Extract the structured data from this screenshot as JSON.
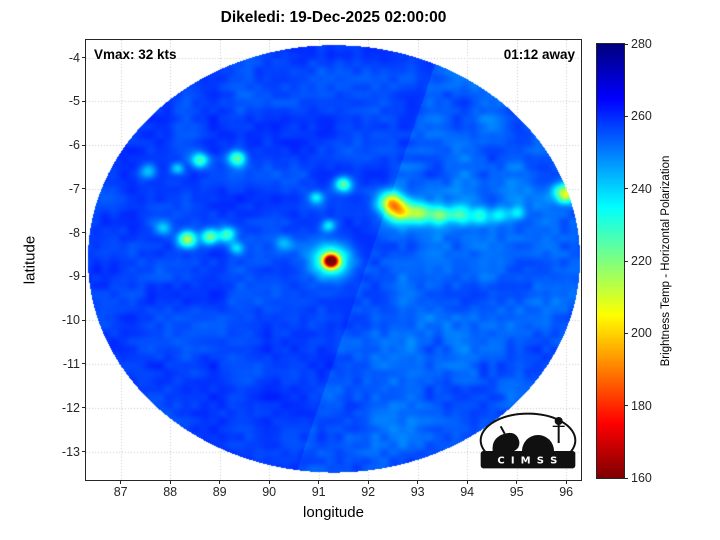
{
  "title": "Dikeledi: 19-Dec-2025 02:00:00",
  "overlay": {
    "vmax_label": "Vmax: 32 kts",
    "eta_label": "01:12 away"
  },
  "logo": {
    "text": "C I M S S"
  },
  "chart_data": {
    "type": "heatmap",
    "title": "Dikeledi: 19-Dec-2025 02:00:00",
    "xlabel": "longitude",
    "ylabel": "latitude",
    "xlim": [
      86.3,
      96.3
    ],
    "ylim": [
      -13.65,
      -3.6
    ],
    "xticks": [
      87,
      88,
      89,
      90,
      91,
      92,
      93,
      94,
      95,
      96
    ],
    "yticks": [
      -4,
      -5,
      -6,
      -7,
      -8,
      -9,
      -10,
      -11,
      -12,
      -13
    ],
    "grid": true,
    "colorbar": {
      "label": "Brightness Temp - Horizontal Polarization",
      "min": 160,
      "max": 280,
      "ticks": [
        160,
        180,
        200,
        220,
        240,
        260,
        280
      ],
      "colormap": "jet-reversed"
    },
    "swath": {
      "center_lon": 91.31,
      "center_lat": -8.6,
      "radius_lon": 4.97,
      "radius_lat": 4.88,
      "background_temp_k": 257,
      "noise_amp_k": 5,
      "seam": {
        "from_lonlat": [
          93.25,
          -4.5
        ],
        "to_lonlat": [
          90.6,
          -13.3
        ],
        "east_side_delta_k": -3.5
      }
    },
    "features": [
      {
        "lon": 91.25,
        "lat": -8.65,
        "dt_k": -95,
        "sigma_deg": 0.1
      },
      {
        "lon": 91.25,
        "lat": -8.65,
        "dt_k": -40,
        "sigma_deg": 0.27
      },
      {
        "lon": 92.45,
        "lat": -7.3,
        "dt_k": -42,
        "sigma_deg": 0.17
      },
      {
        "lon": 92.65,
        "lat": -7.5,
        "dt_k": -48,
        "sigma_deg": 0.19
      },
      {
        "lon": 93.05,
        "lat": -7.55,
        "dt_k": -32,
        "sigma_deg": 0.16
      },
      {
        "lon": 93.45,
        "lat": -7.6,
        "dt_k": -29,
        "sigma_deg": 0.15
      },
      {
        "lon": 93.85,
        "lat": -7.6,
        "dt_k": -26,
        "sigma_deg": 0.15
      },
      {
        "lon": 94.25,
        "lat": -7.6,
        "dt_k": -23,
        "sigma_deg": 0.14
      },
      {
        "lon": 94.65,
        "lat": -7.6,
        "dt_k": -19,
        "sigma_deg": 0.13
      },
      {
        "lon": 95.0,
        "lat": -7.55,
        "dt_k": -15,
        "sigma_deg": 0.12
      },
      {
        "lon": 96.0,
        "lat": -7.1,
        "dt_k": -50,
        "sigma_deg": 0.16
      },
      {
        "lon": 88.35,
        "lat": -8.15,
        "dt_k": -44,
        "sigma_deg": 0.13
      },
      {
        "lon": 88.8,
        "lat": -8.1,
        "dt_k": -36,
        "sigma_deg": 0.12
      },
      {
        "lon": 89.15,
        "lat": -8.05,
        "dt_k": -30,
        "sigma_deg": 0.12
      },
      {
        "lon": 89.35,
        "lat": -8.35,
        "dt_k": -18,
        "sigma_deg": 0.1
      },
      {
        "lon": 88.6,
        "lat": -6.35,
        "dt_k": -30,
        "sigma_deg": 0.12
      },
      {
        "lon": 89.35,
        "lat": -6.3,
        "dt_k": -34,
        "sigma_deg": 0.13
      },
      {
        "lon": 88.15,
        "lat": -6.55,
        "dt_k": -18,
        "sigma_deg": 0.1
      },
      {
        "lon": 91.5,
        "lat": -6.9,
        "dt_k": -34,
        "sigma_deg": 0.12
      },
      {
        "lon": 90.95,
        "lat": -7.2,
        "dt_k": -20,
        "sigma_deg": 0.1
      },
      {
        "lon": 91.2,
        "lat": -7.85,
        "dt_k": -20,
        "sigma_deg": 0.1
      },
      {
        "lon": 87.55,
        "lat": -6.6,
        "dt_k": -16,
        "sigma_deg": 0.12
      },
      {
        "lon": 87.85,
        "lat": -7.9,
        "dt_k": -15,
        "sigma_deg": 0.11
      },
      {
        "lon": 90.3,
        "lat": -8.25,
        "dt_k": -13,
        "sigma_deg": 0.12
      }
    ]
  }
}
